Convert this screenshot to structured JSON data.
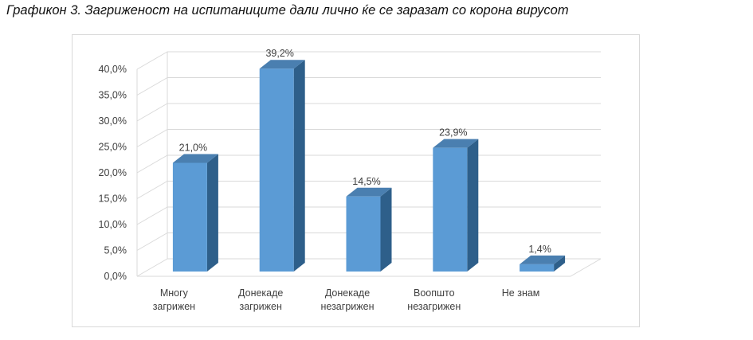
{
  "title": "Графикон 3. Загриженост на испитаниците дали лично ќе се заразат со корона вирусот",
  "chart_data": {
    "type": "bar",
    "title": "",
    "xlabel": "",
    "ylabel": "",
    "categories": [
      [
        "Многу",
        "загрижен"
      ],
      [
        "Донекаде",
        "загрижен"
      ],
      [
        "Донекаде",
        "незагрижен"
      ],
      [
        "Воопшто",
        "незагрижен"
      ],
      [
        "Не знам"
      ]
    ],
    "values": [
      21.0,
      39.2,
      14.5,
      23.9,
      1.4
    ],
    "data_labels": [
      "21,0%",
      "39,2%",
      "14,5%",
      "23,9%",
      "1,4%"
    ],
    "ylim": [
      0,
      40
    ],
    "yticks": [
      "0,0%",
      "5,0%",
      "10,0%",
      "15,0%",
      "20,0%",
      "25,0%",
      "30,0%",
      "35,0%",
      "40,0%"
    ],
    "grid": true,
    "legend": "none",
    "colors": {
      "bar_front": "#5b9bd5",
      "bar_side": "#2e5f8a",
      "bar_top": "#4a7fb0",
      "grid": "#d9d9d9"
    }
  }
}
